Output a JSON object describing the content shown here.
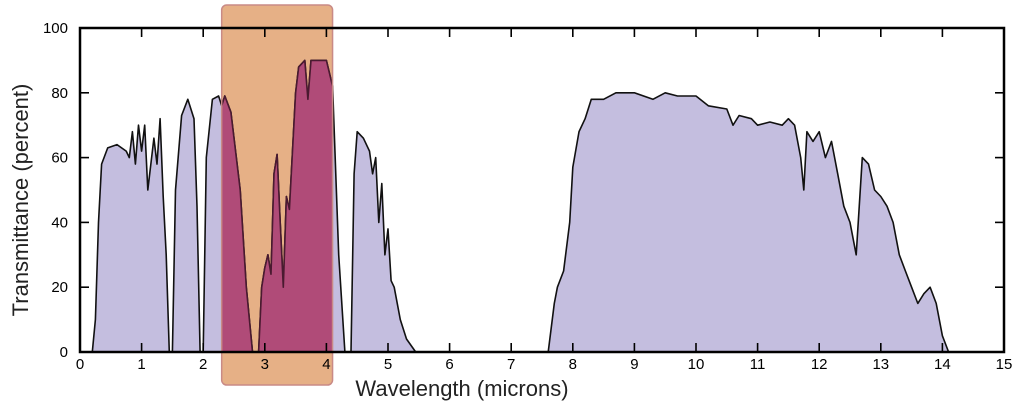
{
  "chart_data": {
    "type": "area",
    "title": "",
    "xlabel": "Wavelength (microns)",
    "ylabel": "Transmittance (percent)",
    "xlim": [
      0,
      15
    ],
    "ylim": [
      0,
      100
    ],
    "x_ticks": [
      0,
      1,
      2,
      3,
      4,
      5,
      6,
      7,
      8,
      9,
      10,
      11,
      12,
      13,
      14,
      15
    ],
    "y_ticks": [
      0,
      20,
      40,
      60,
      80,
      100
    ],
    "grid": false,
    "legend": "none",
    "fill_color": "#c4bedf",
    "line_color": "#111111",
    "highlight": {
      "x_range": [
        2.3,
        4.1
      ],
      "fill_color": "#e3a779",
      "border_color": "#c98a86",
      "overlap_fill": "#b04b78"
    },
    "series": [
      {
        "points": [
          [
            0.2,
            0
          ],
          [
            0.25,
            10
          ],
          [
            0.3,
            40
          ],
          [
            0.35,
            58
          ],
          [
            0.45,
            63
          ],
          [
            0.6,
            64
          ],
          [
            0.75,
            62
          ],
          [
            0.8,
            60
          ],
          [
            0.85,
            68
          ],
          [
            0.9,
            58
          ],
          [
            0.95,
            70
          ],
          [
            1.0,
            62
          ],
          [
            1.05,
            70
          ],
          [
            1.1,
            50
          ],
          [
            1.2,
            66
          ],
          [
            1.25,
            58
          ],
          [
            1.3,
            72
          ],
          [
            1.35,
            48
          ],
          [
            1.4,
            30
          ],
          [
            1.45,
            0
          ],
          [
            1.5,
            0
          ],
          [
            1.55,
            50
          ],
          [
            1.65,
            73
          ],
          [
            1.75,
            78
          ],
          [
            1.85,
            72
          ],
          [
            1.9,
            45
          ],
          [
            1.95,
            0
          ],
          [
            2.0,
            0
          ],
          [
            2.05,
            60
          ],
          [
            2.15,
            78
          ],
          [
            2.25,
            79
          ],
          [
            2.3,
            76
          ],
          [
            2.35,
            79
          ],
          [
            2.45,
            74
          ],
          [
            2.6,
            50
          ],
          [
            2.7,
            20
          ],
          [
            2.8,
            0
          ],
          [
            2.9,
            0
          ],
          [
            2.95,
            20
          ],
          [
            3.0,
            26
          ],
          [
            3.05,
            30
          ],
          [
            3.1,
            24
          ],
          [
            3.15,
            55
          ],
          [
            3.2,
            61
          ],
          [
            3.25,
            40
          ],
          [
            3.3,
            20
          ],
          [
            3.35,
            48
          ],
          [
            3.4,
            44
          ],
          [
            3.45,
            62
          ],
          [
            3.5,
            80
          ],
          [
            3.55,
            88
          ],
          [
            3.65,
            90
          ],
          [
            3.7,
            78
          ],
          [
            3.75,
            90
          ],
          [
            3.85,
            90
          ],
          [
            4.0,
            90
          ],
          [
            4.1,
            82
          ],
          [
            4.2,
            30
          ],
          [
            4.3,
            0
          ],
          [
            4.4,
            0
          ],
          [
            4.45,
            55
          ],
          [
            4.5,
            68
          ],
          [
            4.6,
            66
          ],
          [
            4.7,
            62
          ],
          [
            4.75,
            55
          ],
          [
            4.8,
            60
          ],
          [
            4.85,
            40
          ],
          [
            4.9,
            52
          ],
          [
            4.95,
            30
          ],
          [
            5.0,
            38
          ],
          [
            5.05,
            22
          ],
          [
            5.1,
            20
          ],
          [
            5.2,
            10
          ],
          [
            5.3,
            4
          ],
          [
            5.45,
            0
          ],
          [
            7.6,
            0
          ],
          [
            7.7,
            15
          ],
          [
            7.75,
            20
          ],
          [
            7.85,
            25
          ],
          [
            7.95,
            40
          ],
          [
            8.0,
            57
          ],
          [
            8.1,
            68
          ],
          [
            8.2,
            72
          ],
          [
            8.3,
            78
          ],
          [
            8.5,
            78
          ],
          [
            8.7,
            80
          ],
          [
            9.0,
            80
          ],
          [
            9.3,
            78
          ],
          [
            9.5,
            80
          ],
          [
            9.7,
            79
          ],
          [
            10.0,
            79
          ],
          [
            10.2,
            76
          ],
          [
            10.5,
            75
          ],
          [
            10.6,
            70
          ],
          [
            10.7,
            73
          ],
          [
            10.9,
            72
          ],
          [
            11.0,
            70
          ],
          [
            11.2,
            71
          ],
          [
            11.4,
            70
          ],
          [
            11.5,
            72
          ],
          [
            11.6,
            70
          ],
          [
            11.7,
            60
          ],
          [
            11.75,
            50
          ],
          [
            11.8,
            68
          ],
          [
            11.9,
            65
          ],
          [
            12.0,
            68
          ],
          [
            12.1,
            60
          ],
          [
            12.2,
            65
          ],
          [
            12.3,
            55
          ],
          [
            12.4,
            45
          ],
          [
            12.5,
            40
          ],
          [
            12.6,
            30
          ],
          [
            12.7,
            60
          ],
          [
            12.8,
            58
          ],
          [
            12.9,
            50
          ],
          [
            13.0,
            48
          ],
          [
            13.1,
            45
          ],
          [
            13.2,
            40
          ],
          [
            13.3,
            30
          ],
          [
            13.4,
            25
          ],
          [
            13.5,
            20
          ],
          [
            13.6,
            15
          ],
          [
            13.7,
            18
          ],
          [
            13.8,
            20
          ],
          [
            13.9,
            15
          ],
          [
            14.0,
            5
          ],
          [
            14.1,
            0
          ]
        ]
      }
    ]
  }
}
